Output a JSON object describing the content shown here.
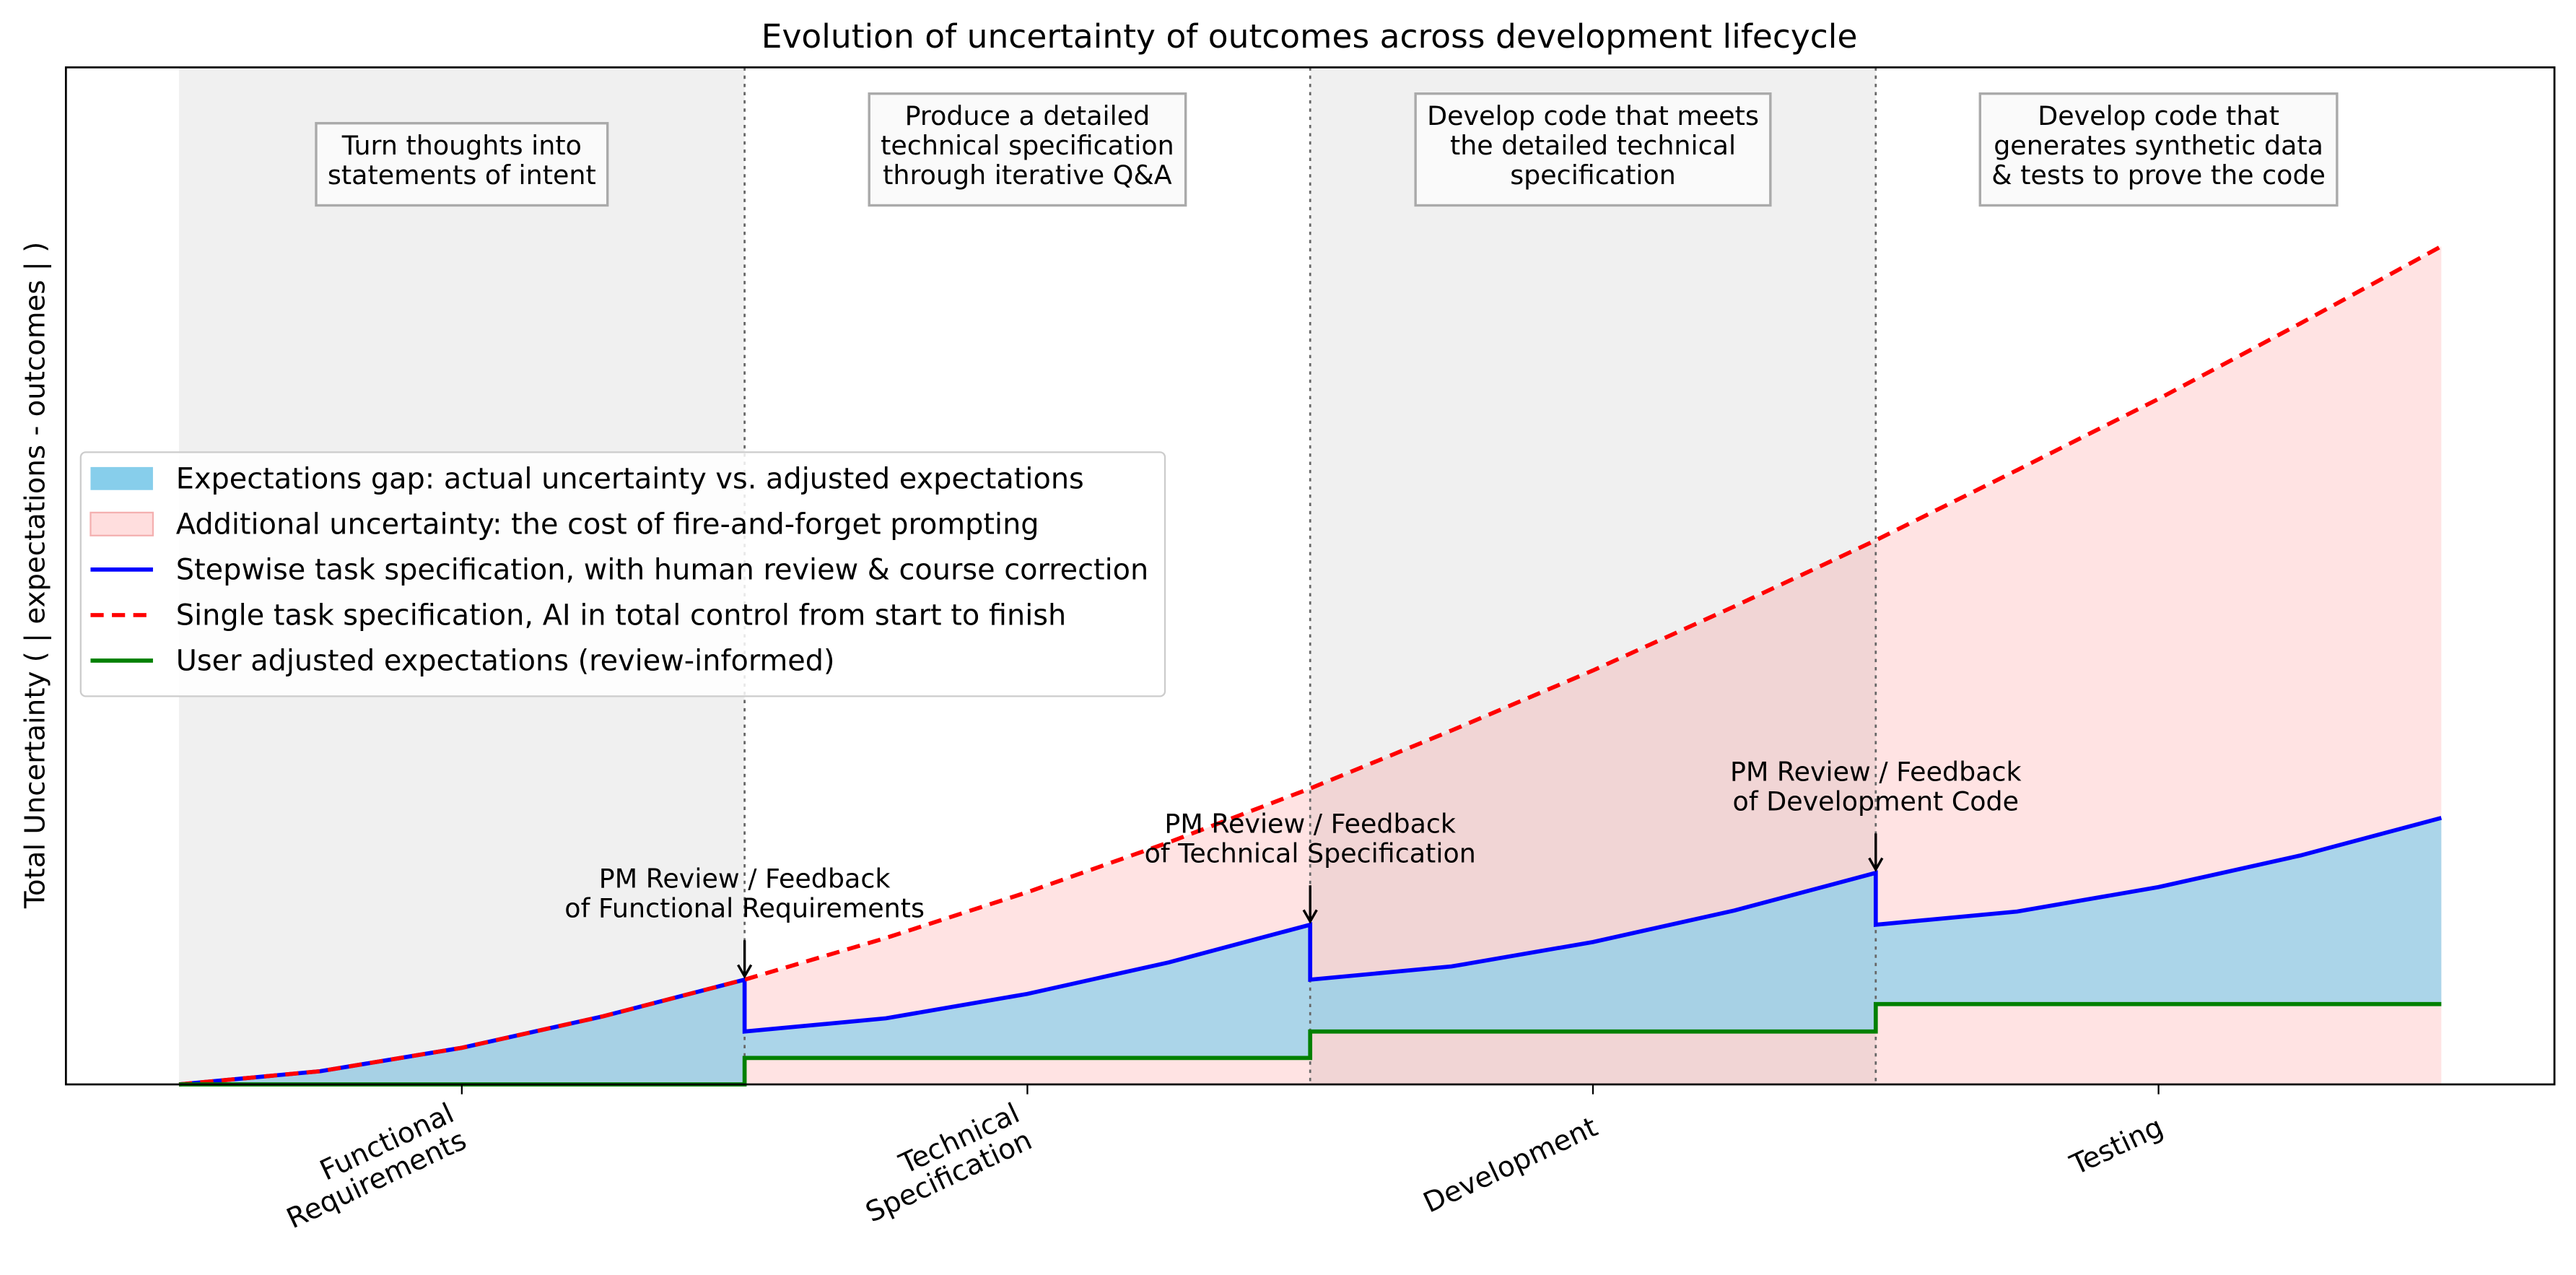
{
  "chart_data": {
    "type": "line",
    "title": "Evolution of uncertainty of outcomes across development lifecycle",
    "ylabel": "Total Uncertainty ( | expectations - outcomes | )",
    "xlim": [
      -0.2,
      4.2
    ],
    "ylim": [
      0,
      1
    ],
    "xticks": [
      {
        "value": 0.5,
        "label": "Functional\nRequirements"
      },
      {
        "value": 1.5,
        "label": "Technical\nSpecification"
      },
      {
        "value": 2.5,
        "label": "Development"
      },
      {
        "value": 3.5,
        "label": "Testing"
      }
    ],
    "boxes": [
      "Turn thoughts into\nstatements of intent",
      "Produce a detailed\ntechnical specification\nthrough iterative Q&A",
      "Develop code that meets\nthe detailed technical\nspecification",
      "Develop code that\ngenerates synthetic data\n& tests to prove the code"
    ],
    "annotations": [
      {
        "text": "PM Review / Feedback\nof Functional Requirements",
        "x": 1
      },
      {
        "text": "PM Review / Feedback\nof Technical Specification",
        "x": 2
      },
      {
        "text": "PM Review / Feedback\nof Development Code",
        "x": 3
      }
    ],
    "fills": [
      {
        "name": "Expectations gap: actual uncertainty vs. adjusted expectations",
        "color": "#87ceeb",
        "alpha": 0.7
      },
      {
        "name": "Additional uncertainty: the cost of fire-and-forget prompting",
        "color": "#ff0000",
        "alpha": 0.11
      }
    ],
    "series": [
      {
        "name": "Stepwise task specification, with human review & course correction",
        "color": "#0000ff",
        "dash": false,
        "x": [
          0,
          0.25,
          0.5,
          0.75,
          1,
          1,
          1.25,
          1.5,
          1.75,
          2,
          2,
          2.25,
          2.5,
          2.75,
          3,
          3,
          3.25,
          3.5,
          3.75,
          4
        ],
        "values": [
          0,
          0.013,
          0.036,
          0.067,
          0.103,
          0.052,
          0.065,
          0.089,
          0.12,
          0.157,
          0.103,
          0.116,
          0.14,
          0.171,
          0.208,
          0.157,
          0.17,
          0.194,
          0.225,
          0.262
        ]
      },
      {
        "name": "Single task specification, AI in total control from start to finish",
        "color": "#ff0000",
        "dash": true,
        "x": [
          0,
          0.25,
          0.5,
          0.75,
          1,
          1.25,
          1.5,
          1.75,
          2,
          2.25,
          2.5,
          2.75,
          3,
          3.25,
          3.5,
          3.75,
          4
        ],
        "values": [
          0,
          0.013,
          0.036,
          0.067,
          0.103,
          0.144,
          0.189,
          0.238,
          0.291,
          0.348,
          0.407,
          0.47,
          0.535,
          0.604,
          0.674,
          0.748,
          0.824
        ]
      },
      {
        "name": "User adjusted expectations (review-informed)",
        "color": "#008000",
        "dash": false,
        "x": [
          0,
          1,
          1,
          2,
          2,
          3,
          3,
          4
        ],
        "values": [
          0,
          0,
          0.026,
          0.026,
          0.052,
          0.052,
          0.079,
          0.079
        ]
      }
    ],
    "legend": "center left"
  }
}
